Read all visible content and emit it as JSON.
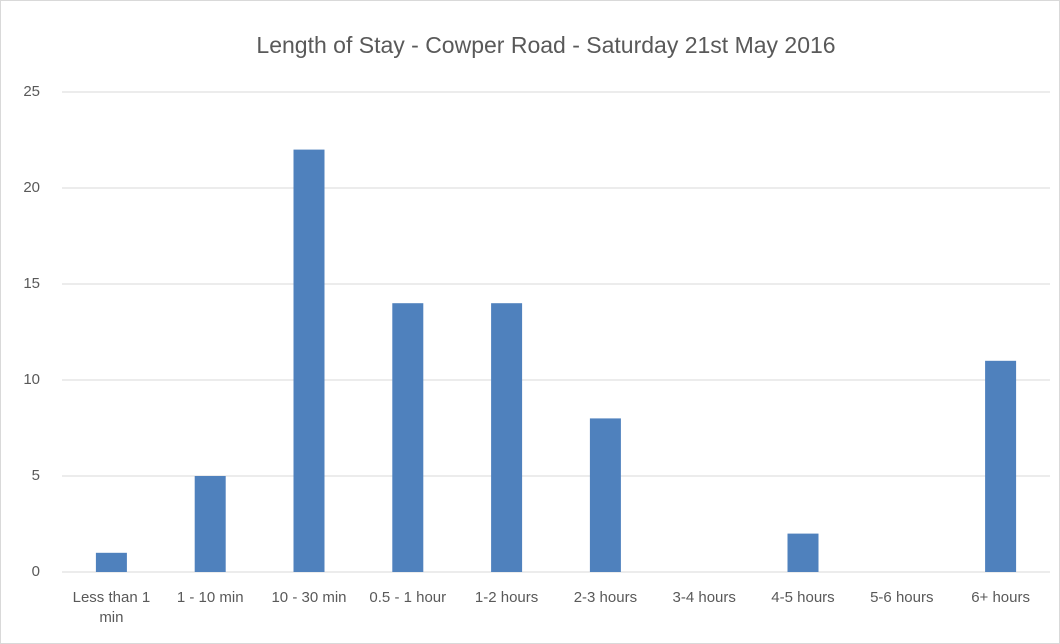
{
  "chart_data": {
    "type": "bar",
    "title": "Length of Stay - Cowper Road - Saturday 21st May 2016",
    "categories": [
      "Less than 1 min",
      "1 - 10 min",
      "10 - 30 min",
      "0.5 - 1 hour",
      "1-2 hours",
      "2-3 hours",
      "3-4 hours",
      "4-5 hours",
      "5-6 hours",
      "6+ hours"
    ],
    "values": [
      1,
      5,
      22,
      14,
      14,
      8,
      0,
      2,
      0,
      11
    ],
    "color": "#4f81bd",
    "ylim": [
      0,
      25
    ],
    "yticks": [
      0,
      5,
      10,
      15,
      20,
      25
    ],
    "grid": true
  }
}
